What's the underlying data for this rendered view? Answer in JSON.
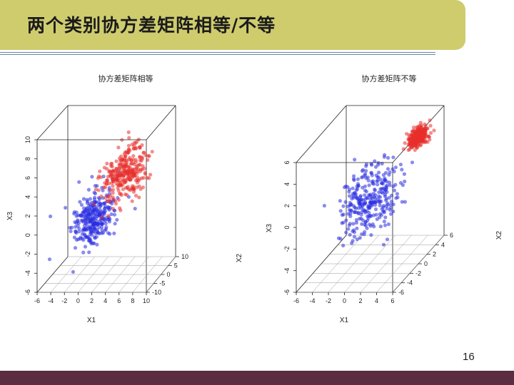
{
  "slide": {
    "title": "两个类别协方差矩阵相等/不等",
    "page_number": "16"
  },
  "colors": {
    "red": "#e8302c",
    "blue": "#2a2ee0",
    "title_bar": "#cfcc6e",
    "bottom_bar": "#5a2d40"
  },
  "chart_data": [
    {
      "type": "scatter",
      "title": "协方差矩阵相等",
      "xlabel": "X1",
      "ylabel": "X3",
      "zlabel": "X2",
      "x_ticks": [
        "-6",
        "-4",
        "-2",
        "0",
        "2",
        "4",
        "6",
        "8",
        "10"
      ],
      "z_ticks": [
        "-6",
        "-4",
        "-2",
        "0",
        "2",
        "4",
        "6",
        "8",
        "10"
      ],
      "depth_ticks": [
        "10",
        "5",
        "0",
        "-5",
        "-10"
      ],
      "xlim": [
        -6,
        10
      ],
      "zlim": [
        -6,
        10
      ],
      "ylim": [
        -10,
        10
      ],
      "series": [
        {
          "color": "#2a2ee0",
          "center": {
            "x": 0,
            "z": 0,
            "y": 0
          },
          "spread": {
            "x": 1.5,
            "z": 1.6,
            "y": 3
          },
          "count": 300
        },
        {
          "color": "#e8302c",
          "center": {
            "x": 4,
            "z": 4,
            "y": 3
          },
          "spread": {
            "x": 1.5,
            "z": 1.6,
            "y": 3
          },
          "count": 300
        }
      ]
    },
    {
      "type": "scatter",
      "title": "协方差矩阵不等",
      "xlabel": "X1",
      "ylabel": "X3",
      "zlabel": "X2",
      "x_ticks": [
        "-6",
        "-4",
        "-2",
        "0",
        "2",
        "4",
        "6"
      ],
      "z_ticks": [
        "-6",
        "-4",
        "-2",
        "0",
        "2",
        "4",
        "6"
      ],
      "depth_ticks": [
        "6",
        "4",
        "2",
        "0",
        "-2",
        "-4",
        "-6"
      ],
      "xlim": [
        -6,
        6
      ],
      "zlim": [
        -6,
        6
      ],
      "ylim": [
        -6,
        6
      ],
      "series": [
        {
          "color": "#2a2ee0",
          "center": {
            "x": 0,
            "z": 0,
            "y": 0
          },
          "spread": {
            "x": 1.6,
            "z": 1.8,
            "y": 1.6
          },
          "count": 300
        },
        {
          "color": "#e8302c",
          "center": {
            "x": 4,
            "z": 4,
            "y": 4
          },
          "spread": {
            "x": 0.5,
            "z": 0.5,
            "y": 0.5
          },
          "count": 300
        }
      ]
    }
  ]
}
